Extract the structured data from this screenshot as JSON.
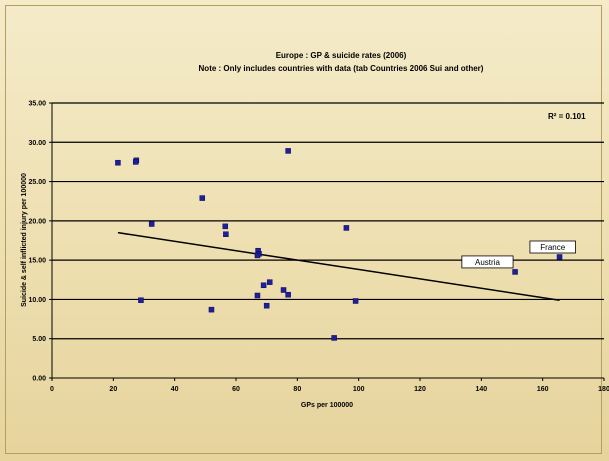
{
  "chart_data": {
    "type": "scatter",
    "title": "Europe : GP & suicide rates (2006)",
    "subtitle": "Note : Only includes countries with data (tab Countries 2006 Sui and other)",
    "xlabel": "GPs per 100000",
    "ylabel": "Suicide & self inflicted injury per 100000",
    "xlim": [
      0,
      180
    ],
    "ylim": [
      0,
      35
    ],
    "x_ticks": [
      0,
      20,
      40,
      60,
      80,
      100,
      120,
      140,
      160,
      180
    ],
    "y_ticks": [
      "0.00",
      "5.00",
      "10.00",
      "15.00",
      "20.00",
      "25.00",
      "30.00",
      "35.00"
    ],
    "grid": "horizontal",
    "r_squared_label": "R² = 0.101",
    "trendline": {
      "x": [
        21.5,
        165.5
      ],
      "y": [
        18.5,
        9.9
      ]
    },
    "series": [
      {
        "points": [
          {
            "x": 21.5,
            "y": 27.4
          },
          {
            "x": 27.5,
            "y": 27.7
          },
          {
            "x": 27.3,
            "y": 27.5
          },
          {
            "x": 29.0,
            "y": 9.9
          },
          {
            "x": 32.5,
            "y": 19.6
          },
          {
            "x": 49.0,
            "y": 22.9
          },
          {
            "x": 52.0,
            "y": 8.7
          },
          {
            "x": 56.5,
            "y": 19.3
          },
          {
            "x": 56.7,
            "y": 18.3
          },
          {
            "x": 67.0,
            "y": 10.5
          },
          {
            "x": 67.2,
            "y": 16.2
          },
          {
            "x": 67.5,
            "y": 15.8
          },
          {
            "x": 67.0,
            "y": 15.6
          },
          {
            "x": 69.0,
            "y": 11.8
          },
          {
            "x": 70.0,
            "y": 9.2
          },
          {
            "x": 71.0,
            "y": 12.2
          },
          {
            "x": 75.5,
            "y": 11.2
          },
          {
            "x": 77.0,
            "y": 10.6
          },
          {
            "x": 77.0,
            "y": 28.9
          },
          {
            "x": 92.0,
            "y": 5.1
          },
          {
            "x": 96.0,
            "y": 19.1
          },
          {
            "x": 99.0,
            "y": 9.8
          },
          {
            "x": 151.0,
            "y": 13.5
          },
          {
            "x": 165.5,
            "y": 15.4
          }
        ]
      }
    ],
    "annotations": [
      {
        "text": "Austria",
        "x": 151.0,
        "y": 13.5
      },
      {
        "text": "France",
        "x": 165.5,
        "y": 15.4
      }
    ],
    "colors": {
      "points": "#1f1f9a",
      "trendline": "#000000",
      "background": "#efe3b8"
    }
  }
}
